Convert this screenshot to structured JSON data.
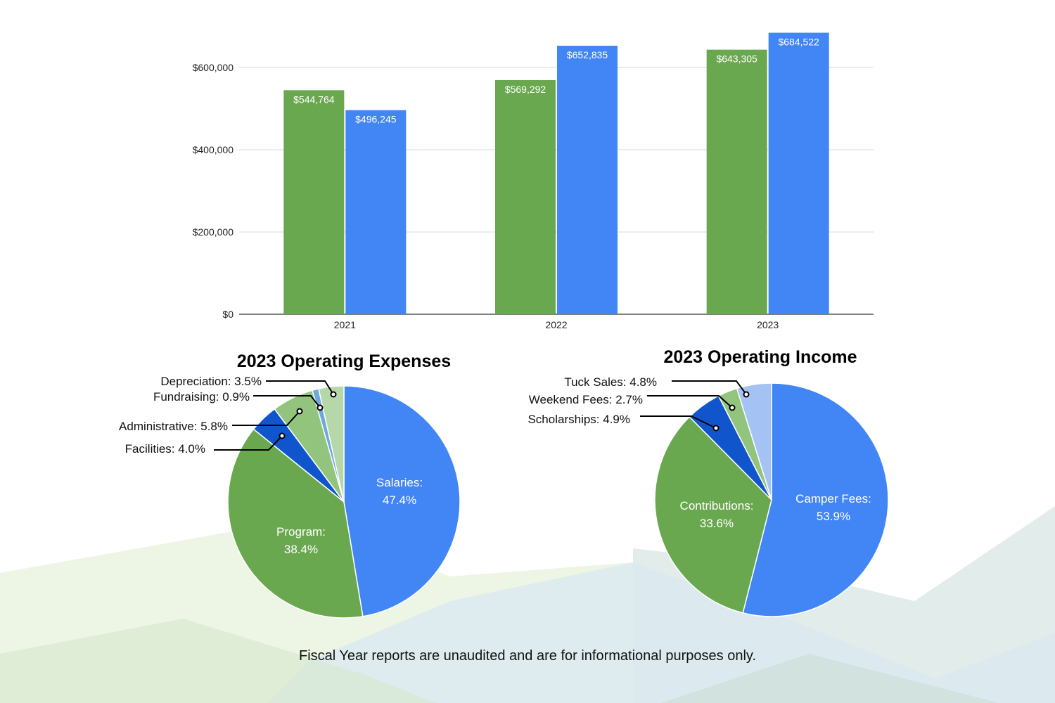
{
  "colors": {
    "green": "#6aa84f",
    "blue": "#4285f4",
    "dark_blue": "#1155cc",
    "light_green": "#93c47d",
    "light_blue_mid": "#6fa8dc",
    "pale_green": "#b6d7a8",
    "pale_blue": "#a4c2f4"
  },
  "footnote": "Fiscal Year reports are unaudited and are for informational purposes only.",
  "chart_data": [
    {
      "type": "bar",
      "title": "",
      "xlabel": "",
      "ylabel": "",
      "categories": [
        "2021",
        "2022",
        "2023"
      ],
      "series": [
        {
          "color": "#6aa84f",
          "values": [
            544764,
            569292,
            643305
          ],
          "labels": [
            "$544,764",
            "$569,292",
            "$643,305"
          ]
        },
        {
          "color": "#4285f4",
          "values": [
            496245,
            652835,
            684522
          ],
          "labels": [
            "$496,245",
            "$652,835",
            "$684,522"
          ]
        }
      ],
      "ylim": [
        0,
        700000
      ],
      "yticks": [
        0,
        200000,
        400000,
        600000
      ],
      "ytick_labels": [
        "$0",
        "$200,000",
        "$400,000",
        "$600,000"
      ],
      "grid": true,
      "legend": "none"
    },
    {
      "type": "pie",
      "title": "2023 Operating Expenses",
      "slices": [
        {
          "label": "Salaries:",
          "pct": "47.4%",
          "value": 47.4,
          "color": "#4285f4",
          "placement": "inside"
        },
        {
          "label": "Program:",
          "pct": "38.4%",
          "value": 38.4,
          "color": "#6aa84f",
          "placement": "inside"
        },
        {
          "label": "Facilities: 4.0%",
          "value": 4.0,
          "color": "#1155cc",
          "placement": "outside"
        },
        {
          "label": "Administrative: 5.8%",
          "value": 5.8,
          "color": "#93c47d",
          "placement": "outside"
        },
        {
          "label": "Fundraising: 0.9%",
          "value": 0.9,
          "color": "#6fa8dc",
          "placement": "outside"
        },
        {
          "label": "Depreciation: 3.5%",
          "value": 3.5,
          "color": "#b6d7a8",
          "placement": "outside"
        }
      ]
    },
    {
      "type": "pie",
      "title": "2023 Operating Income",
      "slices": [
        {
          "label": "Camper Fees:",
          "pct": "53.9%",
          "value": 53.9,
          "color": "#4285f4",
          "placement": "inside"
        },
        {
          "label": "Contributions:",
          "pct": "33.6%",
          "value": 33.6,
          "color": "#6aa84f",
          "placement": "inside"
        },
        {
          "label": "Scholarships: 4.9%",
          "value": 4.9,
          "color": "#1155cc",
          "placement": "outside"
        },
        {
          "label": "Weekend Fees: 2.7%",
          "value": 2.7,
          "color": "#93c47d",
          "placement": "outside"
        },
        {
          "label": "Tuck Sales: 4.8%",
          "value": 4.8,
          "color": "#a4c2f4",
          "placement": "outside"
        }
      ]
    }
  ]
}
